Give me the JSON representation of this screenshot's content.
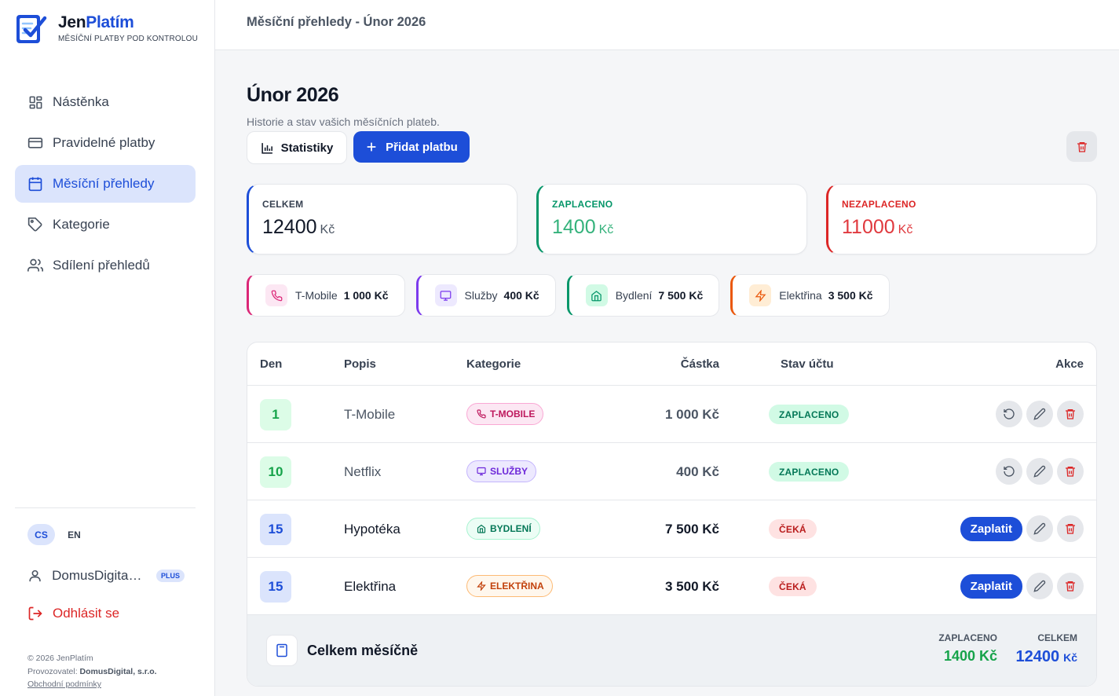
{
  "brand": {
    "name_a": "Jen",
    "name_b": "Platím",
    "tagline": "MĚSÍČNÍ PLATBY POD KONTROLOU"
  },
  "nav": [
    {
      "label": "Nástěnka",
      "icon": "dashboard-icon"
    },
    {
      "label": "Pravidelné platby",
      "icon": "credit-card-icon"
    },
    {
      "label": "Měsíční přehledy",
      "icon": "calendar-icon",
      "active": true
    },
    {
      "label": "Kategorie",
      "icon": "tag-icon"
    },
    {
      "label": "Sdílení přehledů",
      "icon": "users-icon"
    }
  ],
  "lang": {
    "cs": "CS",
    "en": "EN"
  },
  "user": {
    "name": "DomusDigital...",
    "badge": "PLUS"
  },
  "logout": "Odhlásit se",
  "footer": {
    "copy": "© 2026 JenPlatím",
    "operator_label": "Provozovatel:",
    "operator": "DomusDigital, s.r.o.",
    "terms": "Obchodní podmínky"
  },
  "topbar": {
    "title": "Měsíční přehledy - Únor 2026"
  },
  "page": {
    "title": "Únor 2026",
    "subtitle": "Historie a stav vašich měsíčních plateb.",
    "stats_button": "Statistiky",
    "add_button": "Přidat platbu"
  },
  "summary": {
    "total": {
      "label": "CELKEM",
      "value": "12400",
      "unit": "Kč"
    },
    "paid": {
      "label": "ZAPLACENO",
      "value": "1400",
      "unit": "Kč"
    },
    "unpaid": {
      "label": "NEZAPLACENO",
      "value": "11000",
      "unit": "Kč"
    }
  },
  "categories": [
    {
      "name": "T-Mobile",
      "amount": "1 000 Kč"
    },
    {
      "name": "Služby",
      "amount": "400 Kč"
    },
    {
      "name": "Bydlení",
      "amount": "7 500 Kč"
    },
    {
      "name": "Elektřina",
      "amount": "3 500 Kč"
    }
  ],
  "table": {
    "headers": {
      "day": "Den",
      "desc": "Popis",
      "cat": "Kategorie",
      "amount": "Částka",
      "status": "Stav účtu",
      "actions": "Akce"
    },
    "rows": [
      {
        "day": "1",
        "desc": "T-Mobile",
        "category": "T-MOBILE",
        "amount": "1 000 Kč",
        "status": "ZAPLACENO"
      },
      {
        "day": "10",
        "desc": "Netflix",
        "category": "SLUŽBY",
        "amount": "400 Kč",
        "status": "ZAPLACENO"
      },
      {
        "day": "15",
        "desc": "Hypotéka",
        "category": "BYDLENÍ",
        "amount": "7 500 Kč",
        "status": "ČEKÁ",
        "pay": "Zaplatit"
      },
      {
        "day": "15",
        "desc": "Elektřina",
        "category": "ELEKTŘINA",
        "amount": "3 500 Kč",
        "status": "ČEKÁ",
        "pay": "Zaplatit"
      }
    ],
    "footer": {
      "title": "Celkem měsíčně",
      "paid_label": "ZAPLACENO",
      "paid_value": "1400 Kč",
      "total_label": "CELKEM",
      "total_value": "12400",
      "total_unit": "Kč"
    }
  },
  "colors": {
    "accent": "#1d4ed8",
    "green": "#16a34a",
    "red": "#dc2626",
    "pink": "#db2777",
    "purple": "#7c3aed",
    "teal": "#059669",
    "orange": "#ea580c"
  }
}
